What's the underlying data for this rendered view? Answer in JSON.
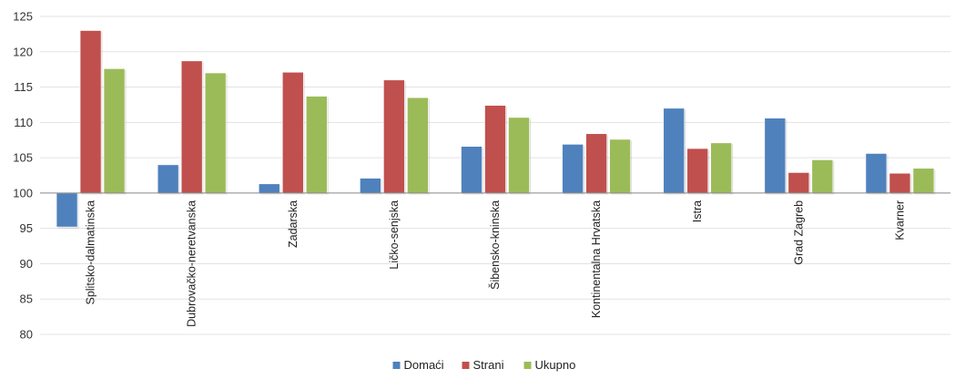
{
  "chart_data": {
    "type": "bar",
    "categories": [
      "Splitsko-dalmatinska",
      "Dubrovačko-neretvanska",
      "Zadarska",
      "Ličko-senjska",
      "Šibensko-kninska",
      "Kontinentalna Hrvatska",
      "Istra",
      "Grad Zagreb",
      "Kvarner"
    ],
    "series": [
      {
        "name": "Domaći",
        "color": "#4f81bd",
        "values": [
          95.2,
          104.0,
          101.3,
          102.1,
          106.6,
          106.9,
          112.0,
          110.6,
          105.6
        ]
      },
      {
        "name": "Strani",
        "color": "#c0504d",
        "values": [
          123.0,
          118.7,
          117.1,
          116.0,
          112.4,
          108.4,
          106.3,
          102.9,
          102.8
        ]
      },
      {
        "name": "Ukupno",
        "color": "#9bbb59",
        "values": [
          117.6,
          117.0,
          113.7,
          113.5,
          110.7,
          107.6,
          107.1,
          104.7,
          103.5
        ]
      }
    ],
    "baseline": 100,
    "ylim": [
      80,
      125
    ],
    "yticks": [
      80,
      85,
      90,
      95,
      100,
      105,
      110,
      115,
      120,
      125
    ],
    "grid": true,
    "legend": "bottom",
    "title": "",
    "xlabel": "",
    "ylabel": ""
  }
}
